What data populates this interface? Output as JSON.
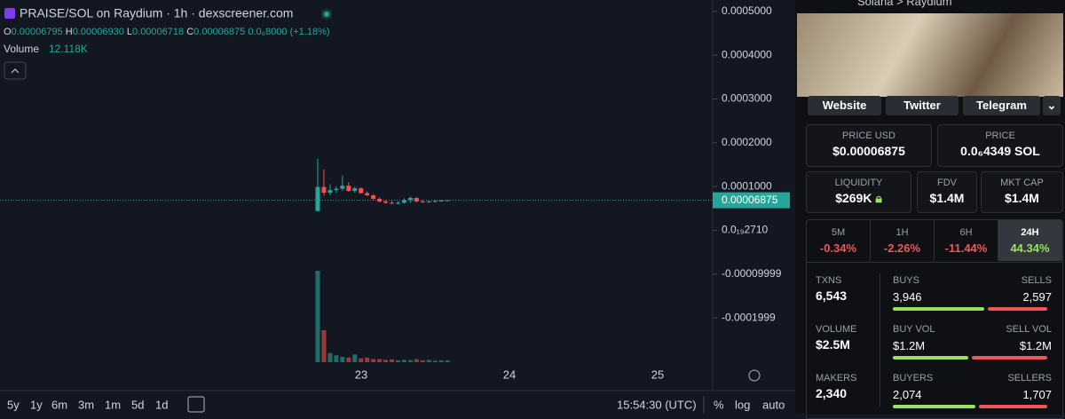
{
  "header": {
    "pair": "PRAISE/SOL on Raydium · 1h · dexscreener.com",
    "ohlc": [
      {
        "key": "O",
        "value": "0.00006795"
      },
      {
        "key": "H",
        "value": "0.00006930"
      },
      {
        "key": "L",
        "value": "0.00006718"
      },
      {
        "key": "C",
        "value": "0.00006875"
      }
    ],
    "change": "0.0₆8000 (+1.18%)",
    "volume_label": "Volume",
    "volume_value": "12.118K"
  },
  "chart_data": {
    "type": "candlestick",
    "current_price_label": "0.00006875",
    "ylim": [
      -0.000301,
      0.000526
    ],
    "yticks": [
      {
        "value": 0.0005,
        "label": "0.0005000"
      },
      {
        "value": 0.0004,
        "label": "0.0004000"
      },
      {
        "value": 0.0003,
        "label": "0.0003000"
      },
      {
        "value": 0.0002,
        "label": "0.0002000"
      },
      {
        "value": 0.0001,
        "label": "0.0001000"
      },
      {
        "value": 0.0,
        "label": "0.0₁₉2710"
      },
      {
        "value": -0.0001,
        "label": "-0.00009999"
      },
      {
        "value": -0.0002,
        "label": "-0.0001999"
      }
    ],
    "x_labels": [
      "23",
      "24",
      "25"
    ],
    "open": [
      4.4e-05,
      9.9e-05,
      8.6e-05,
      9.2e-05,
      9.5e-05,
      0.000102,
      9e-05,
      9.6e-05,
      8.5e-05,
      8e-05,
      7.2e-05,
      6.6e-05,
      6.3e-05,
      6.2e-05,
      6.3e-05,
      6.9e-05,
      7.4e-05,
      6.6e-05,
      6.5e-05,
      6.6e-05,
      6.7e-05,
      6.795e-05
    ],
    "high": [
      0.000164,
      0.000139,
      0.000105,
      0.0001,
      0.000125,
      0.00011,
      0.0001,
      9.8e-05,
      8.9e-05,
      8.3e-05,
      7.5e-05,
      6.9e-05,
      6.7e-05,
      6.6e-05,
      7.3e-05,
      7.7e-05,
      7.6e-05,
      6.9e-05,
      6.8e-05,
      6.9e-05,
      7e-05,
      6.93e-05
    ],
    "low": [
      4.4e-05,
      7.9e-05,
      8e-05,
      8.5e-05,
      9e-05,
      8.8e-05,
      8.6e-05,
      8.4e-05,
      7.8e-05,
      7e-05,
      6.4e-05,
      6.1e-05,
      6e-05,
      5.9e-05,
      6.1e-05,
      6.3e-05,
      6.4e-05,
      6.3e-05,
      6.3e-05,
      6.4e-05,
      6.6e-05,
      6.718e-05
    ],
    "close": [
      9.9e-05,
      8.6e-05,
      9.2e-05,
      9.5e-05,
      0.000102,
      9e-05,
      9.6e-05,
      8.5e-05,
      8e-05,
      7.2e-05,
      6.6e-05,
      6.3e-05,
      6.2e-05,
      6.3e-05,
      6.9e-05,
      7.4e-05,
      6.6e-05,
      6.5e-05,
      6.6e-05,
      6.7e-05,
      6.8e-05,
      6.875e-05
    ],
    "volume": [
      600000,
      210000,
      60000,
      45000,
      35000,
      30000,
      50000,
      25000,
      30000,
      20000,
      20000,
      15000,
      18000,
      12000,
      15000,
      14000,
      20000,
      12000,
      15000,
      10000,
      12000,
      12118
    ],
    "up_color": "#26a69a",
    "down_color": "#ef5350"
  },
  "toolbar": {
    "timeframes": [
      "5y",
      "1y",
      "6m",
      "3m",
      "1m",
      "5d",
      "1d"
    ],
    "time": "15:54:30 (UTC)",
    "percent": "%",
    "log": "log",
    "auto": "auto"
  },
  "panel": {
    "breadcrumb": "Solana > Raydium",
    "links": [
      "Website",
      "Twitter",
      "Telegram"
    ],
    "price_usd": {
      "label": "PRICE USD",
      "value": "$0.00006875"
    },
    "price": {
      "label": "PRICE",
      "value": "0.0₆4349 SOL"
    },
    "liquidity": {
      "label": "LIQUIDITY",
      "value": "$269K"
    },
    "fdv": {
      "label": "FDV",
      "value": "$1.4M"
    },
    "mkt_cap": {
      "label": "MKT CAP",
      "value": "$1.4M"
    },
    "tabs": [
      {
        "label": "5M",
        "value": "-0.34%"
      },
      {
        "label": "1H",
        "value": "-2.26%"
      },
      {
        "label": "6H",
        "value": "-11.44%"
      },
      {
        "label": "24H",
        "value": "44.34%"
      }
    ],
    "stats": [
      {
        "label": "TXNS",
        "value": "6,543",
        "left_label": "BUYS",
        "left": "3,946",
        "right_label": "SELLS",
        "right": "2,597"
      },
      {
        "label": "VOLUME",
        "value": "$2.5M",
        "left_label": "BUY VOL",
        "left": "$1.2M",
        "right_label": "SELL VOL",
        "right": "$1.2M"
      },
      {
        "label": "MAKERS",
        "value": "2,340",
        "left_label": "BUYERS",
        "left": "2,074",
        "right_label": "SELLERS",
        "right": "1,707"
      }
    ]
  }
}
